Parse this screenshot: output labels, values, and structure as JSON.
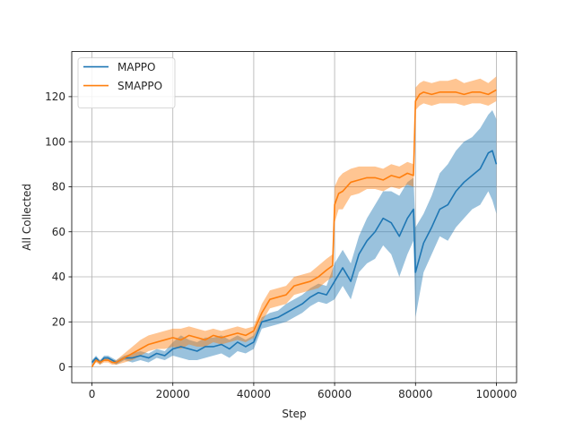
{
  "chart_data": {
    "type": "line",
    "title": "",
    "xlabel": "Step",
    "ylabel": "All Collected",
    "xlim": [
      -5000,
      105000
    ],
    "ylim": [
      -7,
      140
    ],
    "xticks": [
      0,
      20000,
      40000,
      60000,
      80000,
      100000
    ],
    "yticks": [
      0,
      20,
      40,
      60,
      80,
      100,
      120
    ],
    "grid": true,
    "legend_position": "upper-left",
    "series": [
      {
        "name": "MAPPO",
        "color": "#1f77b4",
        "points": [
          [
            0,
            2,
            1,
            3
          ],
          [
            1000,
            4,
            3,
            5
          ],
          [
            2000,
            2,
            1,
            3
          ],
          [
            3000,
            4,
            3,
            5
          ],
          [
            4000,
            4,
            3,
            5
          ],
          [
            5000,
            3,
            2,
            4
          ],
          [
            6000,
            2,
            1,
            3
          ],
          [
            8000,
            4,
            3,
            5
          ],
          [
            10000,
            4,
            2,
            6
          ],
          [
            12000,
            5,
            3,
            7
          ],
          [
            14000,
            4,
            2,
            6
          ],
          [
            16000,
            6,
            4,
            8
          ],
          [
            18000,
            5,
            3,
            7
          ],
          [
            20000,
            8,
            5,
            11
          ],
          [
            22000,
            9,
            4,
            14
          ],
          [
            24000,
            8,
            3,
            12
          ],
          [
            26000,
            7,
            3,
            11
          ],
          [
            28000,
            9,
            4,
            13
          ],
          [
            30000,
            9,
            5,
            13
          ],
          [
            32000,
            10,
            6,
            14
          ],
          [
            34000,
            8,
            4,
            12
          ],
          [
            36000,
            11,
            7,
            14
          ],
          [
            38000,
            9,
            6,
            12
          ],
          [
            40000,
            11,
            8,
            14
          ],
          [
            42000,
            20,
            17,
            22
          ],
          [
            44000,
            21,
            18,
            24
          ],
          [
            46000,
            22,
            19,
            25
          ],
          [
            48000,
            24,
            20,
            28
          ],
          [
            50000,
            26,
            22,
            30
          ],
          [
            52000,
            28,
            24,
            32
          ],
          [
            54000,
            31,
            27,
            35
          ],
          [
            56000,
            33,
            29,
            37
          ],
          [
            58000,
            32,
            28,
            36
          ],
          [
            60000,
            38,
            30,
            46
          ],
          [
            62000,
            44,
            36,
            52
          ],
          [
            64000,
            38,
            30,
            46
          ],
          [
            66000,
            50,
            42,
            58
          ],
          [
            68000,
            56,
            46,
            66
          ],
          [
            70000,
            60,
            48,
            72
          ],
          [
            72000,
            66,
            54,
            78
          ],
          [
            74000,
            64,
            50,
            78
          ],
          [
            76000,
            58,
            40,
            76
          ],
          [
            78000,
            66,
            50,
            82
          ],
          [
            79500,
            70,
            56,
            84
          ],
          [
            80000,
            42,
            22,
            62
          ],
          [
            82000,
            55,
            42,
            68
          ],
          [
            84000,
            62,
            50,
            76
          ],
          [
            86000,
            70,
            58,
            86
          ],
          [
            88000,
            72,
            56,
            90
          ],
          [
            90000,
            78,
            62,
            96
          ],
          [
            92000,
            82,
            66,
            100
          ],
          [
            94000,
            85,
            70,
            102
          ],
          [
            96000,
            88,
            72,
            106
          ],
          [
            98000,
            95,
            78,
            112
          ],
          [
            99000,
            96,
            74,
            114
          ],
          [
            100000,
            90,
            68,
            110
          ]
        ]
      },
      {
        "name": "SMAPPO",
        "color": "#ff7f0e",
        "points": [
          [
            0,
            0,
            0,
            1
          ],
          [
            1000,
            3,
            2,
            4
          ],
          [
            2000,
            2,
            1,
            3
          ],
          [
            3000,
            3,
            2,
            4
          ],
          [
            4000,
            3,
            2,
            4
          ],
          [
            5000,
            2,
            1,
            3
          ],
          [
            6000,
            2,
            1,
            3
          ],
          [
            8000,
            4,
            2,
            6
          ],
          [
            10000,
            6,
            3,
            9
          ],
          [
            12000,
            8,
            5,
            12
          ],
          [
            14000,
            10,
            7,
            14
          ],
          [
            16000,
            11,
            8,
            15
          ],
          [
            18000,
            12,
            8,
            16
          ],
          [
            20000,
            13,
            9,
            17
          ],
          [
            22000,
            12,
            8,
            17
          ],
          [
            24000,
            14,
            10,
            18
          ],
          [
            26000,
            13,
            9,
            17
          ],
          [
            28000,
            12,
            9,
            16
          ],
          [
            30000,
            14,
            11,
            17
          ],
          [
            32000,
            13,
            10,
            16
          ],
          [
            34000,
            14,
            11,
            17
          ],
          [
            36000,
            15,
            12,
            18
          ],
          [
            38000,
            14,
            11,
            17
          ],
          [
            40000,
            16,
            13,
            18
          ],
          [
            42000,
            24,
            20,
            28
          ],
          [
            44000,
            30,
            26,
            34
          ],
          [
            46000,
            31,
            27,
            35
          ],
          [
            48000,
            32,
            28,
            36
          ],
          [
            50000,
            36,
            32,
            40
          ],
          [
            52000,
            37,
            33,
            41
          ],
          [
            54000,
            38,
            34,
            42
          ],
          [
            56000,
            40,
            35,
            45
          ],
          [
            58000,
            43,
            38,
            48
          ],
          [
            59500,
            45,
            40,
            50
          ],
          [
            60000,
            72,
            64,
            80
          ],
          [
            61000,
            77,
            70,
            84
          ],
          [
            62000,
            78,
            70,
            86
          ],
          [
            64000,
            82,
            76,
            88
          ],
          [
            66000,
            83,
            77,
            89
          ],
          [
            68000,
            84,
            79,
            89
          ],
          [
            70000,
            84,
            79,
            89
          ],
          [
            72000,
            83,
            78,
            88
          ],
          [
            74000,
            85,
            80,
            90
          ],
          [
            76000,
            84,
            79,
            89
          ],
          [
            78000,
            86,
            81,
            91
          ],
          [
            79500,
            85,
            80,
            90
          ],
          [
            80000,
            118,
            114,
            124
          ],
          [
            81000,
            121,
            116,
            126
          ],
          [
            82000,
            122,
            117,
            127
          ],
          [
            84000,
            121,
            116,
            126
          ],
          [
            86000,
            122,
            117,
            127
          ],
          [
            88000,
            122,
            117,
            127
          ],
          [
            90000,
            122,
            117,
            128
          ],
          [
            92000,
            121,
            116,
            126
          ],
          [
            94000,
            122,
            117,
            127
          ],
          [
            96000,
            122,
            117,
            128
          ],
          [
            98000,
            121,
            116,
            126
          ],
          [
            100000,
            123,
            118,
            129
          ]
        ]
      }
    ]
  }
}
